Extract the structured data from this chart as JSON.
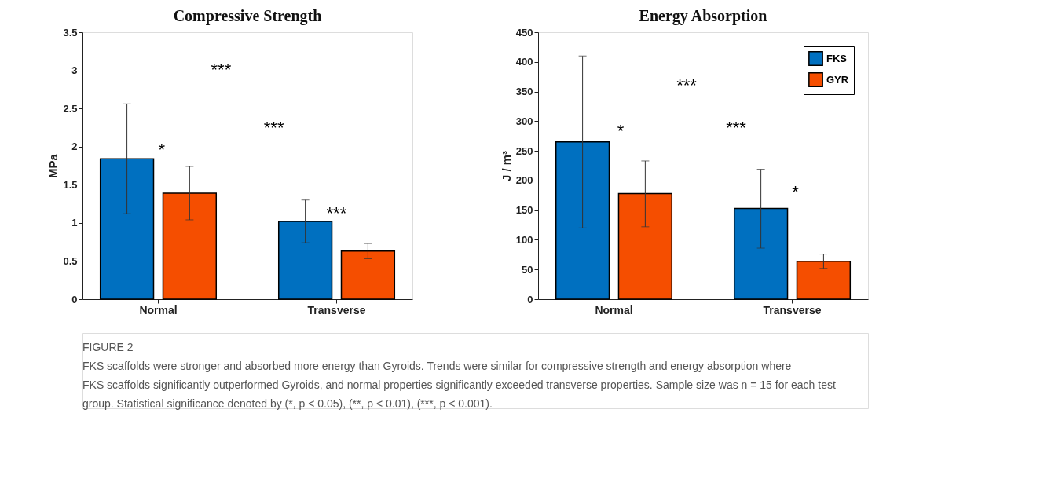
{
  "chart_data": [
    {
      "type": "bar",
      "title": "Compressive Strength",
      "ylabel": "MPa",
      "categories": [
        "Normal",
        "Transverse"
      ],
      "ylim": [
        0,
        3.5
      ],
      "yticks": [
        0,
        0.5,
        1,
        1.5,
        2,
        2.5,
        3,
        3.5
      ],
      "grid": false,
      "legend": false,
      "series": [
        {
          "color": "#0070c0",
          "values": [
            1.84,
            1.02
          ],
          "errors": [
            [
              1.12,
              2.56
            ],
            [
              0.74,
              1.3
            ]
          ]
        },
        {
          "color": "#f54e00",
          "values": [
            1.39,
            0.63
          ],
          "errors": [
            [
              1.04,
              1.74
            ],
            [
              0.53,
              0.73
            ]
          ]
        }
      ],
      "annotations": [
        "*",
        "***",
        "***",
        "***"
      ]
    },
    {
      "type": "bar",
      "title": "Energy Absorption",
      "ylabel": "J / m³",
      "categories": [
        "Normal",
        "Transverse"
      ],
      "ylim": [
        0,
        450
      ],
      "yticks": [
        0,
        50,
        100,
        150,
        200,
        250,
        300,
        350,
        400,
        450
      ],
      "grid": false,
      "legend": "top right",
      "series": [
        {
          "name": "FKS",
          "color": "#0070c0",
          "values": [
            265,
            153
          ],
          "errors": [
            [
              120,
              410
            ],
            [
              86,
              219
            ]
          ]
        },
        {
          "name": "GYR",
          "color": "#f54e00",
          "values": [
            178,
            64
          ],
          "errors": [
            [
              122,
              233
            ],
            [
              52,
              76
            ]
          ]
        }
      ],
      "annotations": [
        "*",
        "*",
        "***",
        "***"
      ]
    },
    {
      "type": "other",
      "annotations": [
        "FIGURE 2",
        "FKS scaffolds were stronger and absorbed more energy than Gyroids. Trends were similar for compressive strength and energy absorption where",
        "FKS scaffolds significantly outperformed Gyroids, and normal properties significantly exceeded transverse properties. Sample size was n = 15 for each test",
        "group. Statistical significance denoted by (*, p < 0.05), (**, p < 0.01), (***, p < 0.001)."
      ]
    }
  ]
}
